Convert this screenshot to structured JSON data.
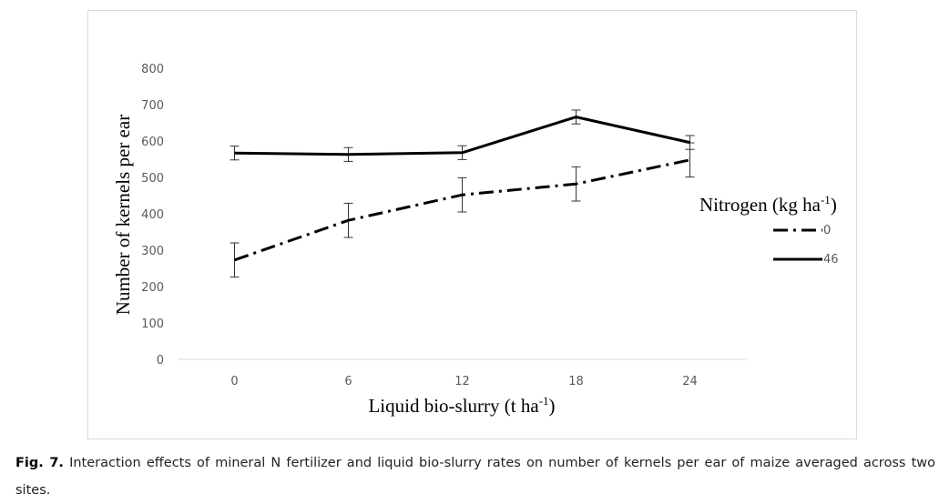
{
  "chart_data": {
    "type": "line",
    "xlabel": "Liquid bio-slurry (t ha",
    "xlabel_sup": "-1",
    "xlabel_end": ")",
    "ylabel": "Number of kernels per ear",
    "x": [
      0,
      6,
      12,
      18,
      24
    ],
    "x_tick_labels": [
      "0",
      "6",
      "12",
      "18",
      "24"
    ],
    "ylim": [
      0,
      800
    ],
    "y_ticks": [
      0,
      100,
      200,
      300,
      400,
      500,
      600,
      700,
      800
    ],
    "y_tick_labels": [
      "0",
      "100",
      "200",
      "300",
      "400",
      "500",
      "600",
      "700",
      "800"
    ],
    "grid": false,
    "legend_position": "right",
    "legend_title": "Nitrogen (kg ha",
    "legend_title_sup": "-1",
    "legend_title_end": ")",
    "series": [
      {
        "name": "0",
        "style": "dash-dot",
        "color": "#000000",
        "values": [
          273,
          382,
          452,
          482,
          548
        ],
        "error": [
          47,
          47,
          47,
          47,
          47
        ]
      },
      {
        "name": "46",
        "style": "solid",
        "color": "#000000",
        "values": [
          567,
          563,
          568,
          666,
          596
        ],
        "error": [
          19,
          19,
          19,
          19,
          19
        ]
      }
    ]
  },
  "caption": {
    "label": "Fig. 7.",
    "text": " Interaction effects of mineral N fertilizer and liquid bio-slurry rates on number of kernels per ear of maize averaged across two sites."
  }
}
